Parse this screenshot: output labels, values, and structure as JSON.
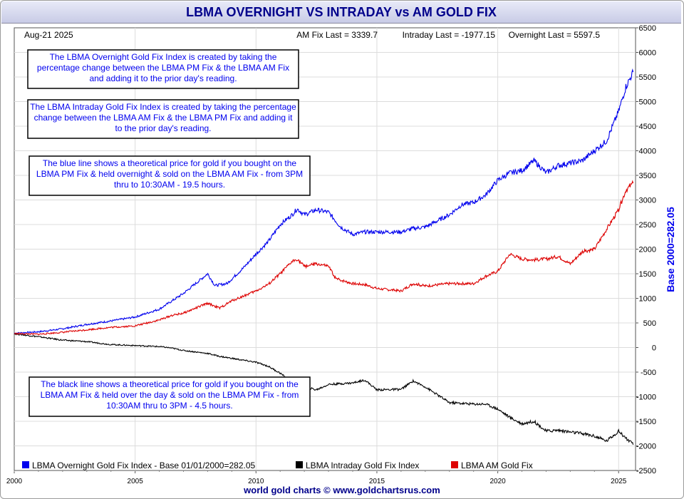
{
  "title": "LBMA OVERNIGHT VS INTRADAY vs AM GOLD FIX",
  "header": {
    "date": "Aug-21  2025",
    "am_fix_last": "AM Fix Last = 3339.7",
    "intraday_last": "Intraday Last = -1977.15",
    "overnight_last": "Overnight Last = 5597.5"
  },
  "notes": [
    "The LBMA Overnight Gold Fix Index is created by taking the percentage change between the LBMA PM Fix & the LBMA AM Fix and adding it to the prior day's reading.",
    "The LBMA Intraday Gold Fix Index is created by taking the percentage change between the LBMA AM Fix & the LBMA PM Fix and adding it to the prior day's reading.",
    "The blue line shows a theoretical price for gold if you bought on the LBMA PM Fix & held overnight & sold on the LBMA AM Fix - from 3PM thru to 10:30AM - 19.5 hours.",
    "The black line shows a theoretical price for gold if you bought on the LBMA AM Fix & held over the day & sold on the LBMA PM Fix - from 10:30AM thru to 3PM - 4.5 hours."
  ],
  "footer": "world gold charts © www.goldchartsrus.com",
  "colors": {
    "overnight": "#0000ee",
    "intraday": "#000000",
    "amfix": "#dd0000",
    "note_text": "#0000ee",
    "axis_label": "#0000ee"
  },
  "chart_data": {
    "type": "line",
    "x_unit": "year",
    "xlim": [
      2000,
      2025.7
    ],
    "ylim": [
      -2500,
      6500
    ],
    "y_ticks": [
      6500,
      6000,
      5500,
      5000,
      4500,
      4000,
      3500,
      3000,
      2500,
      2000,
      1500,
      1000,
      500,
      0,
      -500,
      -1000,
      -1500,
      -2000,
      -2500
    ],
    "x_ticks": [
      2000,
      2005,
      2010,
      2015,
      2020,
      2025
    ],
    "x_tick_labels": [
      "2000",
      "2005",
      "2010",
      "2015",
      "2020",
      "2025"
    ],
    "ylabel": "Base 2000=282.05",
    "y_axis_side": "right",
    "grid": true,
    "legend_position": "bottom",
    "series": [
      {
        "name": "LBMA Overnight Gold Fix Index - Base 01/01/2000=282.05",
        "color": "#0000ee",
        "x": [
          2000,
          2001,
          2002,
          2003,
          2004,
          2005,
          2006,
          2006.5,
          2007,
          2008,
          2008.3,
          2008.8,
          2009.5,
          2010,
          2010.5,
          2011,
          2011.5,
          2011.7,
          2012,
          2012.5,
          2013,
          2013.5,
          2014,
          2014.5,
          2015,
          2016,
          2016.5,
          2017,
          2018,
          2018.5,
          2019,
          2019.5,
          2020,
          2020.5,
          2021,
          2021.5,
          2022,
          2022.5,
          2023,
          2023.5,
          2024,
          2024.5,
          2025,
          2025.3,
          2025.6
        ],
        "y": [
          290,
          320,
          380,
          470,
          540,
          620,
          780,
          940,
          1100,
          1500,
          1260,
          1300,
          1630,
          1900,
          2150,
          2500,
          2700,
          2820,
          2700,
          2800,
          2750,
          2450,
          2300,
          2350,
          2350,
          2350,
          2420,
          2450,
          2700,
          2900,
          2950,
          3100,
          3400,
          3550,
          3600,
          3800,
          3550,
          3700,
          3750,
          3800,
          4000,
          4200,
          4800,
          5300,
          5600
        ]
      },
      {
        "name": "LBMA Intraday Gold Fix Index",
        "color": "#000000",
        "x": [
          2000,
          2001,
          2002,
          2003,
          2004,
          2005,
          2006,
          2006.5,
          2007,
          2008,
          2008.5,
          2009,
          2010,
          2010.5,
          2011,
          2011.3,
          2011.4,
          2011.6,
          2012,
          2012.5,
          2013,
          2014,
          2014.5,
          2015,
          2016,
          2016.5,
          2017,
          2018,
          2019,
          2019.5,
          2020,
          2020.5,
          2021,
          2021.5,
          2022,
          2022.5,
          2023,
          2023.5,
          2024,
          2024.5,
          2025,
          2025.6
        ],
        "y": [
          280,
          220,
          150,
          120,
          60,
          40,
          20,
          -10,
          -60,
          -120,
          -180,
          -220,
          -300,
          -380,
          -520,
          -640,
          -700,
          -780,
          -800,
          -860,
          -750,
          -720,
          -660,
          -860,
          -850,
          -680,
          -800,
          -1120,
          -1150,
          -1150,
          -1250,
          -1420,
          -1550,
          -1500,
          -1700,
          -1680,
          -1720,
          -1750,
          -1800,
          -1900,
          -1700,
          -1977
        ]
      },
      {
        "name": "LBMA AM Gold Fix",
        "color": "#dd0000",
        "x": [
          2000,
          2001,
          2002,
          2003,
          2004,
          2005,
          2006,
          2006.5,
          2007,
          2008,
          2008.5,
          2009,
          2010,
          2010.5,
          2011,
          2011.5,
          2011.7,
          2012,
          2012.5,
          2013,
          2013.3,
          2014,
          2014.5,
          2015,
          2016,
          2016.5,
          2017,
          2018,
          2019,
          2019.5,
          2020,
          2020.5,
          2021,
          2021.5,
          2022,
          2022.5,
          2023,
          2023.5,
          2024,
          2024.5,
          2025,
          2025.3,
          2025.6
        ],
        "y": [
          285,
          270,
          310,
          360,
          410,
          440,
          560,
          650,
          700,
          900,
          800,
          950,
          1150,
          1280,
          1500,
          1750,
          1800,
          1650,
          1700,
          1650,
          1400,
          1300,
          1280,
          1200,
          1150,
          1300,
          1250,
          1300,
          1300,
          1450,
          1550,
          1900,
          1800,
          1780,
          1800,
          1850,
          1700,
          1950,
          2000,
          2400,
          2800,
          3200,
          3340
        ]
      }
    ]
  }
}
